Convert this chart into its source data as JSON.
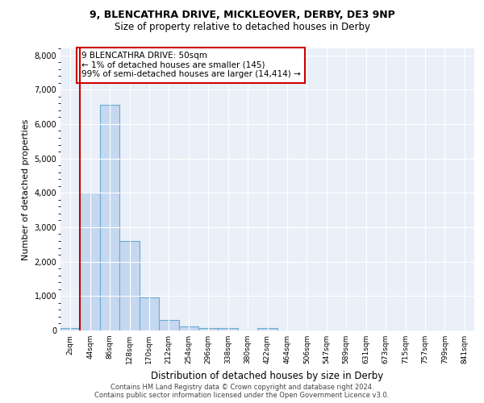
{
  "title_line1": "9, BLENCATHRA DRIVE, MICKLEOVER, DERBY, DE3 9NP",
  "title_line2": "Size of property relative to detached houses in Derby",
  "xlabel": "Distribution of detached houses by size in Derby",
  "ylabel": "Number of detached properties",
  "bar_labels": [
    "2sqm",
    "44sqm",
    "86sqm",
    "128sqm",
    "170sqm",
    "212sqm",
    "254sqm",
    "296sqm",
    "338sqm",
    "380sqm",
    "422sqm",
    "464sqm",
    "506sqm",
    "547sqm",
    "589sqm",
    "631sqm",
    "673sqm",
    "715sqm",
    "757sqm",
    "799sqm",
    "841sqm"
  ],
  "bar_values": [
    60,
    4000,
    6550,
    2600,
    950,
    310,
    110,
    70,
    70,
    0,
    60,
    0,
    0,
    0,
    0,
    0,
    0,
    0,
    0,
    0,
    0
  ],
  "bar_color": "#c5d8f0",
  "bar_edge_color": "#6aaad4",
  "vline_color": "#cc0000",
  "annotation_text": "9 BLENCATHRA DRIVE: 50sqm\n← 1% of detached houses are smaller (145)\n99% of semi-detached houses are larger (14,414) →",
  "annotation_box_color": "#ffffff",
  "annotation_box_edge_color": "#cc0000",
  "ylim": [
    0,
    8200
  ],
  "yticks": [
    0,
    1000,
    2000,
    3000,
    4000,
    5000,
    6000,
    7000,
    8000
  ],
  "bg_color": "#eaf0f8",
  "footer_line1": "Contains HM Land Registry data © Crown copyright and database right 2024.",
  "footer_line2": "Contains public sector information licensed under the Open Government Licence v3.0."
}
